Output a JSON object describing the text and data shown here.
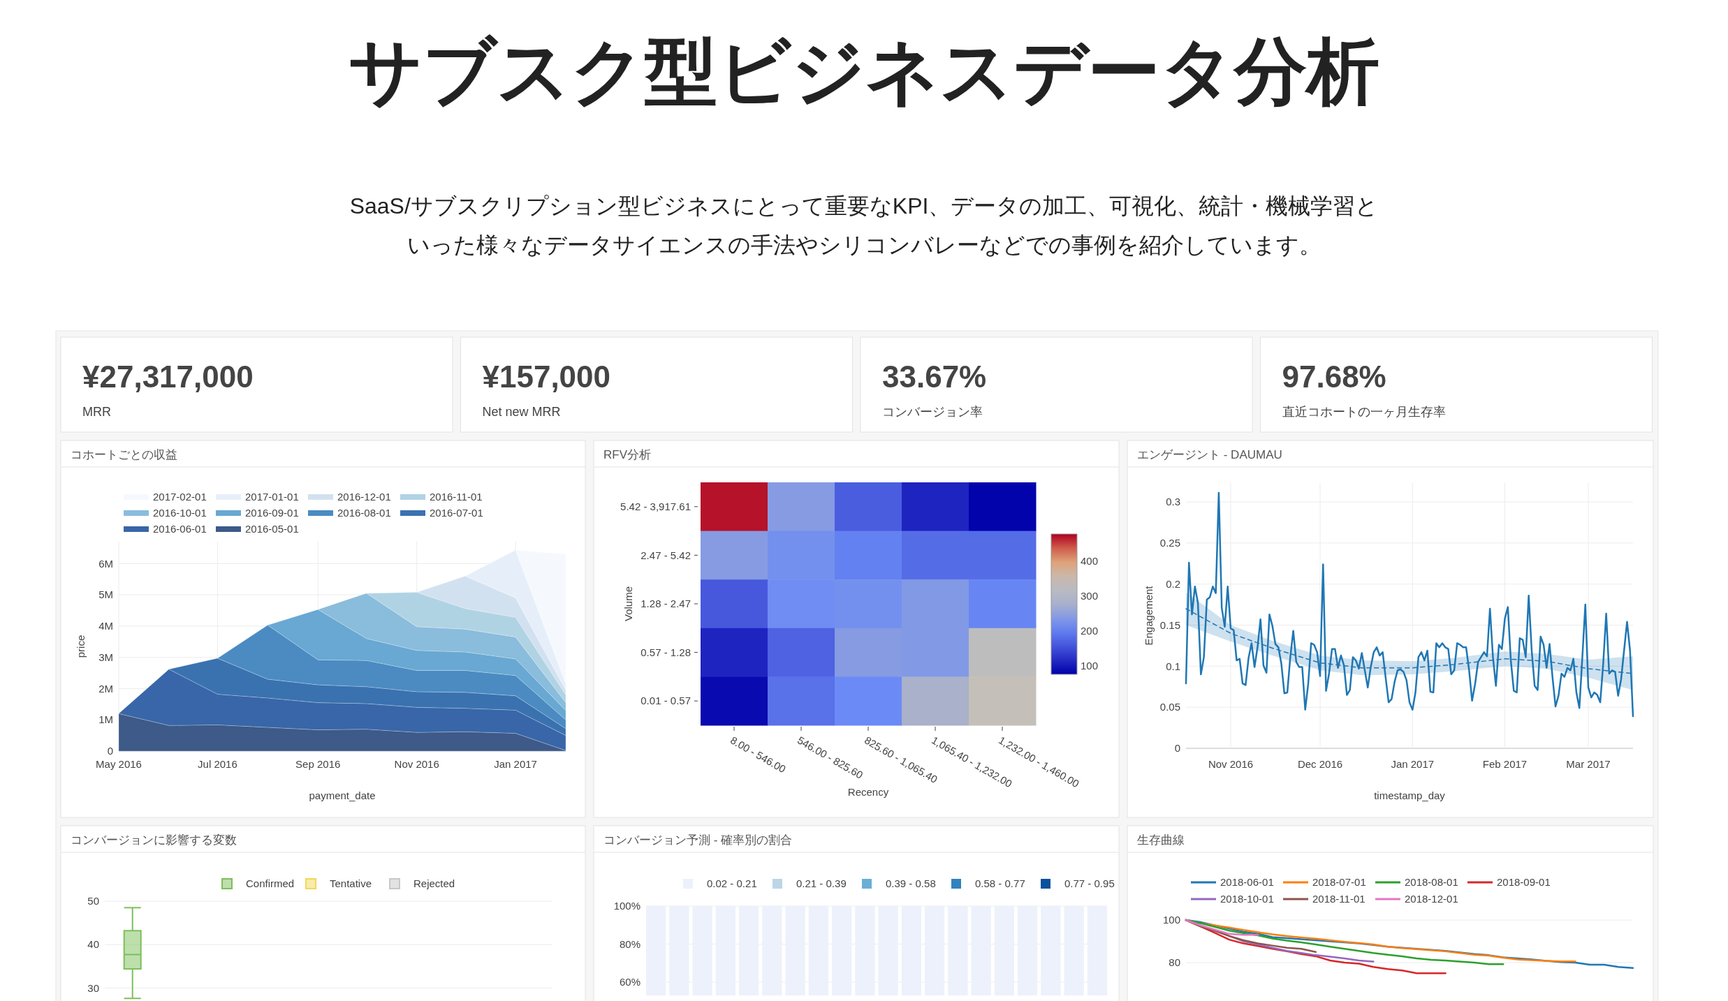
{
  "chart_data": [
    {
      "type": "other",
      "title": "サブスク型ビジネスデータ分析",
      "subtitle": "SaaS/サブスクリプション型ビジネスにとって重要なKPI、データの加工、可視化、統計・機械学習といった様々なデータサイエンスの手法やシリコンバレーなどでの事例を紹介しています。",
      "annotations": [
        "¥27,317,000",
        "MRR",
        "¥157,000",
        "Net new MRR",
        "33.67%",
        "コンバージョン率",
        "97.68%",
        "直近コホートの一ヶ月生存率"
      ]
    },
    {
      "type": "area",
      "title": "コホートごとの収益",
      "xlabel": "payment_date",
      "ylabel": "price",
      "stacked": true,
      "grid": true,
      "legend": "top",
      "x": [
        "2016-05",
        "2016-06",
        "2016-07",
        "2016-08",
        "2016-09",
        "2016-10",
        "2016-11",
        "2016-12",
        "2017-01",
        "2017-02"
      ],
      "xlim": [
        "2016-05",
        "2017-02"
      ],
      "xticks": [
        {
          "value": "2016-05",
          "label": "May 2016"
        },
        {
          "value": "2016-07",
          "label": "Jul 2016"
        },
        {
          "value": "2016-09",
          "label": "Sep 2016"
        },
        {
          "value": "2016-11",
          "label": "Nov 2016"
        },
        {
          "value": "2017-01",
          "label": "Jan 2017"
        }
      ],
      "ylim": [
        0,
        6700000
      ],
      "yticks": [
        0,
        {
          "value": 1000000,
          "label": "1M"
        },
        {
          "value": 2000000,
          "label": "2M"
        },
        {
          "value": 3000000,
          "label": "3M"
        },
        {
          "value": 4000000,
          "label": "4M"
        },
        {
          "value": 5000000,
          "label": "5M"
        },
        {
          "value": 6000000,
          "label": "6M"
        }
      ],
      "series": [
        {
          "name": "2016-05-01",
          "color": "#3d5a88",
          "values": [
            1200000,
            820000,
            840000,
            760000,
            680000,
            700000,
            600000,
            620000,
            570000,
            20000
          ]
        },
        {
          "name": "2016-06-01",
          "color": "#3866a8",
          "values": [
            0,
            1800000,
            980000,
            940000,
            870000,
            820000,
            800000,
            750000,
            740000,
            480000
          ]
        },
        {
          "name": "2016-07-01",
          "color": "#3a72b0",
          "values": [
            null,
            0,
            1150000,
            600000,
            570000,
            540000,
            500000,
            510000,
            460000,
            220000
          ]
        },
        {
          "name": "2016-08-01",
          "color": "#4b8bc2",
          "values": [
            null,
            null,
            0,
            1730000,
            800000,
            840000,
            680000,
            700000,
            650000,
            280000
          ]
        },
        {
          "name": "2016-09-01",
          "color": "#68a8d2",
          "values": [
            null,
            null,
            null,
            0,
            1610000,
            700000,
            640000,
            590000,
            530000,
            300000
          ]
        },
        {
          "name": "2016-10-01",
          "color": "#8abcdc",
          "values": [
            null,
            null,
            null,
            null,
            0,
            1450000,
            760000,
            730000,
            700000,
            250000
          ]
        },
        {
          "name": "2016-11-01",
          "color": "#b0d3e4",
          "values": [
            null,
            null,
            null,
            null,
            null,
            0,
            1100000,
            660000,
            630000,
            250000
          ]
        },
        {
          "name": "2016-12-01",
          "color": "#d2e1f0",
          "values": [
            null,
            null,
            null,
            null,
            null,
            null,
            0,
            1040000,
            620000,
            150000
          ]
        },
        {
          "name": "2017-01-01",
          "color": "#e6eff9",
          "values": [
            null,
            null,
            null,
            null,
            null,
            null,
            null,
            0,
            1530000,
            200000
          ]
        },
        {
          "name": "2017-02-01",
          "color": "#f5f9fe",
          "values": [
            null,
            null,
            null,
            null,
            null,
            null,
            null,
            null,
            0,
            4150000
          ]
        }
      ]
    },
    {
      "type": "heatmap",
      "title": "RFV分析",
      "xlabel": "Recency",
      "ylabel": "Volume",
      "categories": [
        "8.00 - 546.00",
        "546.00 - 825.60",
        "825.60 - 1,065.40",
        "1,065.40 - 1,232.00",
        "1,232.00 - 1,460.00"
      ],
      "y_categories": [
        "5.42 - 3,917.61",
        "2.47 - 5.42",
        "1.28 - 2.47",
        "0.57 - 1.28",
        "0.01 - 0.57"
      ],
      "cells": [
        [
          470,
          240,
          165,
          110,
          78
        ],
        [
          240,
          220,
          200,
          180,
          180
        ],
        [
          160,
          215,
          220,
          235,
          205
        ],
        [
          110,
          170,
          240,
          235,
          330
        ],
        [
          85,
          185,
          210,
          280,
          345
        ]
      ],
      "clim": [
        75,
        478
      ],
      "cticks": [
        100,
        200,
        300,
        400
      ]
    },
    {
      "type": "line",
      "title": "エンゲージント - DAUMAU",
      "xlabel": "timestamp_day",
      "ylabel": "Engagement",
      "grid": true,
      "xlim": [
        "2016-10-17",
        "2017-03-16"
      ],
      "xticks": [
        {
          "value": "2016-11-01",
          "label": "Nov 2016"
        },
        {
          "value": "2016-12-01",
          "label": "Dec 2016"
        },
        {
          "value": "2017-01-01",
          "label": "Jan 2017"
        },
        {
          "value": "2017-02-01",
          "label": "Feb 2017"
        },
        {
          "value": "2017-03-01",
          "label": "Mar 2017"
        }
      ],
      "ylim": [
        0,
        0.323
      ],
      "yticks": [
        0,
        0.05,
        0.1,
        0.15,
        0.2,
        0.25,
        0.3
      ],
      "x": [
        "2016-10-17",
        "2016-10-18",
        "2016-10-19",
        "2016-10-20",
        "2016-10-21",
        "2016-10-22",
        "2016-10-23",
        "2016-10-24",
        "2016-10-25",
        "2016-10-26",
        "2016-10-27",
        "2016-10-28",
        "2016-10-29",
        "2016-10-30",
        "2016-10-31",
        "2016-11-01",
        "2016-11-02",
        "2016-11-03",
        "2016-11-04",
        "2016-11-05",
        "2016-11-06",
        "2016-11-07",
        "2016-11-08",
        "2016-11-09",
        "2016-11-10",
        "2016-11-11",
        "2016-11-12",
        "2016-11-13",
        "2016-11-14",
        "2016-11-15",
        "2016-11-16",
        "2016-11-17",
        "2016-11-18",
        "2016-11-19",
        "2016-11-20",
        "2016-11-21",
        "2016-11-22",
        "2016-11-23",
        "2016-11-24",
        "2016-11-25",
        "2016-11-26",
        "2016-11-27",
        "2016-11-28",
        "2016-11-29",
        "2016-11-30",
        "2016-12-01",
        "2016-12-02",
        "2016-12-03",
        "2016-12-04",
        "2016-12-05",
        "2016-12-06",
        "2016-12-07",
        "2016-12-08",
        "2016-12-09",
        "2016-12-10",
        "2016-12-11",
        "2016-12-12",
        "2016-12-13",
        "2016-12-14",
        "2016-12-15",
        "2016-12-16",
        "2016-12-17",
        "2016-12-18",
        "2016-12-19",
        "2016-12-20",
        "2016-12-21",
        "2016-12-22",
        "2016-12-23",
        "2016-12-24",
        "2016-12-25",
        "2016-12-26",
        "2016-12-27",
        "2016-12-28",
        "2016-12-29",
        "2016-12-30",
        "2016-12-31",
        "2017-01-01",
        "2017-01-02",
        "2017-01-03",
        "2017-01-04",
        "2017-01-05",
        "2017-01-06",
        "2017-01-07",
        "2017-01-08",
        "2017-01-09",
        "2017-01-10",
        "2017-01-11",
        "2017-01-12",
        "2017-01-13",
        "2017-01-14",
        "2017-01-15",
        "2017-01-16",
        "2017-01-17",
        "2017-01-18",
        "2017-01-19",
        "2017-01-20",
        "2017-01-21",
        "2017-01-22",
        "2017-01-23",
        "2017-01-24",
        "2017-01-25",
        "2017-01-26",
        "2017-01-27",
        "2017-01-28",
        "2017-01-29",
        "2017-01-30",
        "2017-01-31",
        "2017-02-01",
        "2017-02-02",
        "2017-02-03",
        "2017-02-04",
        "2017-02-05",
        "2017-02-06",
        "2017-02-07",
        "2017-02-08",
        "2017-02-09",
        "2017-02-10",
        "2017-02-11",
        "2017-02-12",
        "2017-02-13",
        "2017-02-14",
        "2017-02-15",
        "2017-02-16",
        "2017-02-17",
        "2017-02-18",
        "2017-02-19",
        "2017-02-20",
        "2017-02-21",
        "2017-02-22",
        "2017-02-23",
        "2017-02-24",
        "2017-02-25",
        "2017-02-26",
        "2017-02-27",
        "2017-02-28",
        "2017-03-01",
        "2017-03-02",
        "2017-03-03",
        "2017-03-04",
        "2017-03-05",
        "2017-03-06",
        "2017-03-07",
        "2017-03-08",
        "2017-03-09",
        "2017-03-10",
        "2017-03-11",
        "2017-03-12",
        "2017-03-13",
        "2017-03-14",
        "2017-03-15",
        "2017-03-16"
      ],
      "series": [
        {
          "color": "#1f77b4",
          "values": [
            0.079,
            0.226,
            0.163,
            0.197,
            0.177,
            0.09,
            0.111,
            0.181,
            0.184,
            0.197,
            0.189,
            0.311,
            0.171,
            0.148,
            0.197,
            0.146,
            0.144,
            0.107,
            0.109,
            0.079,
            0.077,
            0.11,
            0.128,
            0.099,
            0.123,
            0.157,
            0.101,
            0.092,
            0.163,
            0.149,
            0.127,
            0.123,
            0.103,
            0.067,
            0.068,
            0.111,
            0.143,
            0.105,
            0.099,
            0.099,
            0.047,
            0.078,
            0.128,
            0.126,
            0.117,
            0.088,
            0.224,
            0.07,
            0.091,
            0.121,
            0.121,
            0.098,
            0.113,
            0.101,
            0.065,
            0.071,
            0.111,
            0.107,
            0.097,
            0.116,
            0.095,
            0.074,
            0.099,
            0.117,
            0.123,
            0.113,
            0.117,
            0.086,
            0.056,
            0.06,
            0.081,
            0.095,
            0.096,
            0.093,
            0.083,
            0.056,
            0.047,
            0.068,
            0.111,
            0.117,
            0.107,
            0.119,
            0.069,
            0.068,
            0.128,
            0.123,
            0.128,
            0.123,
            0.121,
            0.09,
            0.095,
            0.128,
            0.126,
            0.123,
            0.123,
            0.095,
            0.058,
            0.078,
            0.105,
            0.111,
            0.117,
            0.112,
            0.17,
            0.111,
            0.076,
            0.126,
            0.121,
            0.158,
            0.172,
            0.107,
            0.07,
            0.068,
            0.134,
            0.132,
            0.111,
            0.186,
            0.119,
            0.076,
            0.071,
            0.136,
            0.126,
            0.098,
            0.127,
            0.086,
            0.051,
            0.064,
            0.091,
            0.087,
            0.098,
            0.095,
            0.109,
            0.068,
            0.049,
            0.111,
            0.175,
            0.074,
            0.062,
            0.068,
            0.065,
            0.056,
            0.103,
            0.164,
            0.091,
            0.095,
            0.093,
            0.064,
            0.084,
            0.119,
            0.154,
            0.119,
            0.039
          ]
        },
        {
          "type": "line",
          "color": "#1f77b4",
          "line_style": "dashed",
          "x": [
            "2016-10-17",
            "2016-11-01",
            "2016-11-15",
            "2016-12-01",
            "2016-12-15",
            "2017-01-01",
            "2017-01-15",
            "2017-02-01",
            "2017-02-15",
            "2017-03-01",
            "2017-03-16"
          ],
          "values": [
            0.17,
            0.14,
            0.122,
            0.104,
            0.098,
            0.098,
            0.102,
            0.109,
            0.106,
            0.097,
            0.091
          ],
          "lower": [
            0.15,
            0.13,
            0.113,
            0.095,
            0.089,
            0.09,
            0.094,
            0.1,
            0.097,
            0.086,
            0.071
          ],
          "upper": [
            0.19,
            0.15,
            0.131,
            0.113,
            0.107,
            0.106,
            0.11,
            0.118,
            0.115,
            0.108,
            0.112
          ]
        }
      ]
    },
    {
      "type": "box",
      "title": "コンバージョンに影響する変数",
      "grid": "y",
      "legend": "top",
      "categories": [
        null,
        null,
        null,
        null,
        null,
        null,
        null
      ],
      "ylim": [
        27,
        50
      ],
      "yticks": [
        30,
        40,
        50
      ],
      "series": [
        {
          "name": "Confirmed",
          "color": "#7cbf5a",
          "boxes": [
            {
              "low": 27.6,
              "q1": 34.4,
              "median": 37.7,
              "q3": 43.2,
              "high": 48.5
            },
            null,
            null,
            null,
            null,
            null,
            null
          ]
        },
        {
          "name": "Tentative",
          "color": "#f2d857",
          "boxes": [
            null,
            null,
            null,
            null,
            null,
            null,
            null
          ]
        },
        {
          "name": "Rejected",
          "color": "#c8c8c8",
          "boxes": [
            null,
            null,
            null,
            null,
            null,
            null,
            null
          ]
        }
      ]
    },
    {
      "type": "bar",
      "title": "コンバージョン予測 - 確率別の割合",
      "legend": "top",
      "grid": "y",
      "categories": [
        null,
        null,
        null,
        null,
        null,
        null,
        null,
        null,
        null,
        null,
        null,
        null,
        null,
        null,
        null,
        null,
        null,
        null,
        null,
        null
      ],
      "ylim": [
        53,
        100
      ],
      "yticks": [
        {
          "value": 60,
          "label": "60%"
        },
        {
          "value": 80,
          "label": "80%"
        },
        {
          "value": 100,
          "label": "100%"
        }
      ],
      "series": [
        {
          "name": "0.02 - 0.21",
          "color": "#edf1fc",
          "values": [
            100,
            100,
            100,
            100,
            100,
            100,
            100,
            100,
            100,
            100,
            100,
            100,
            100,
            100,
            100,
            100,
            100,
            100,
            100,
            100
          ]
        },
        {
          "name": "0.21 - 0.39",
          "color": "#bcd6e6",
          "values": [
            null,
            null,
            null,
            null,
            null,
            null,
            null,
            null,
            null,
            null,
            null,
            null,
            null,
            null,
            null,
            null,
            null,
            null,
            null,
            null
          ]
        },
        {
          "name": "0.39 - 0.58",
          "color": "#6baed6",
          "values": [
            null,
            null,
            null,
            null,
            null,
            null,
            null,
            null,
            null,
            null,
            null,
            null,
            null,
            null,
            null,
            null,
            null,
            null,
            null,
            null
          ]
        },
        {
          "name": "0.58 - 0.77",
          "color": "#3182bd",
          "values": [
            null,
            null,
            null,
            null,
            null,
            null,
            null,
            null,
            null,
            null,
            null,
            null,
            null,
            null,
            null,
            null,
            null,
            null,
            null,
            null
          ]
        },
        {
          "name": "0.77 - 0.95",
          "color": "#08519c",
          "values": [
            null,
            null,
            null,
            null,
            null,
            null,
            null,
            null,
            null,
            null,
            null,
            null,
            null,
            null,
            null,
            null,
            null,
            null,
            null,
            null
          ]
        }
      ]
    },
    {
      "type": "line",
      "title": "生存曲線",
      "grid": "y",
      "legend": "top",
      "categories": [
        null,
        null,
        null,
        null,
        null,
        null,
        null,
        null,
        null,
        null,
        null,
        null,
        null,
        null,
        null,
        null,
        null,
        null,
        null,
        null,
        null,
        null,
        null,
        null,
        null,
        null,
        null,
        null,
        null,
        null,
        null,
        null
      ],
      "ylim": [
        62,
        100
      ],
      "yticks": [
        80,
        100
      ],
      "series": [
        {
          "name": "2018-06-01",
          "color": "#1f77b4",
          "values": [
            100,
            99,
            97.5,
            96,
            94.5,
            93.5,
            92,
            91.5,
            91,
            90.5,
            90,
            89.5,
            89,
            88.3,
            87.5,
            87,
            86.5,
            86,
            85.5,
            84.8,
            84,
            83.5,
            82.5,
            82,
            81.5,
            80.8,
            80.3,
            80,
            79,
            79,
            78,
            77.5
          ]
        },
        {
          "name": "2018-07-01",
          "color": "#ff7f0e",
          "values": [
            100,
            98.5,
            97.5,
            96.5,
            95.3,
            94.3,
            93.3,
            92.5,
            91.8,
            91.2,
            90.5,
            89.8,
            89.2,
            88.5,
            87.5,
            86.8,
            86.3,
            85.8,
            85.3,
            84.5,
            83.7,
            83.3,
            82.3,
            81.5,
            81.2,
            80.8,
            80.6,
            80.6,
            null,
            null,
            null,
            null
          ]
        },
        {
          "name": "2018-08-01",
          "color": "#2ca02c",
          "values": [
            100,
            98.5,
            96.8,
            95,
            93.8,
            92.8,
            91.3,
            90.3,
            89.5,
            88.5,
            87.5,
            86.5,
            85.5,
            84.5,
            83.7,
            83,
            82,
            81.3,
            81,
            80.5,
            80,
            79.3,
            79.3,
            null,
            null,
            null,
            null,
            null,
            null,
            null,
            null,
            null
          ]
        },
        {
          "name": "2018-09-01",
          "color": "#d62728",
          "values": [
            100,
            97,
            94,
            90.8,
            89,
            87.8,
            86.5,
            85.3,
            84,
            83,
            81,
            80,
            79.5,
            78,
            77,
            76.3,
            75,
            75,
            75,
            null,
            null,
            null,
            null,
            null,
            null,
            null,
            null,
            null,
            null,
            null,
            null,
            null
          ]
        },
        {
          "name": "2018-10-01",
          "color": "#9467bd",
          "values": [
            100,
            97.5,
            95,
            92.5,
            90,
            88.5,
            87,
            85.5,
            84.5,
            83.5,
            82.8,
            82,
            81,
            80.5,
            null,
            null,
            null,
            null,
            null,
            null,
            null,
            null,
            null,
            null,
            null,
            null,
            null,
            null,
            null,
            null,
            null,
            null
          ]
        },
        {
          "name": "2018-11-01",
          "color": "#8c564b",
          "values": [
            100,
            97,
            95,
            92.5,
            90.5,
            89,
            88,
            87,
            86.5,
            85,
            null,
            null,
            null,
            null,
            null,
            null,
            null,
            null,
            null,
            null,
            null,
            null,
            null,
            null,
            null,
            null,
            null,
            null,
            null,
            null,
            null,
            null
          ]
        },
        {
          "name": "2018-12-01",
          "color": "#e377c2",
          "values": [
            100,
            97.5,
            95.5,
            93.5,
            93,
            93,
            null,
            null,
            null,
            null,
            null,
            null,
            null,
            null,
            null,
            null,
            null,
            null,
            null,
            null,
            null,
            null,
            null,
            null,
            null,
            null,
            null,
            null,
            null,
            null,
            null,
            null
          ]
        }
      ]
    }
  ]
}
